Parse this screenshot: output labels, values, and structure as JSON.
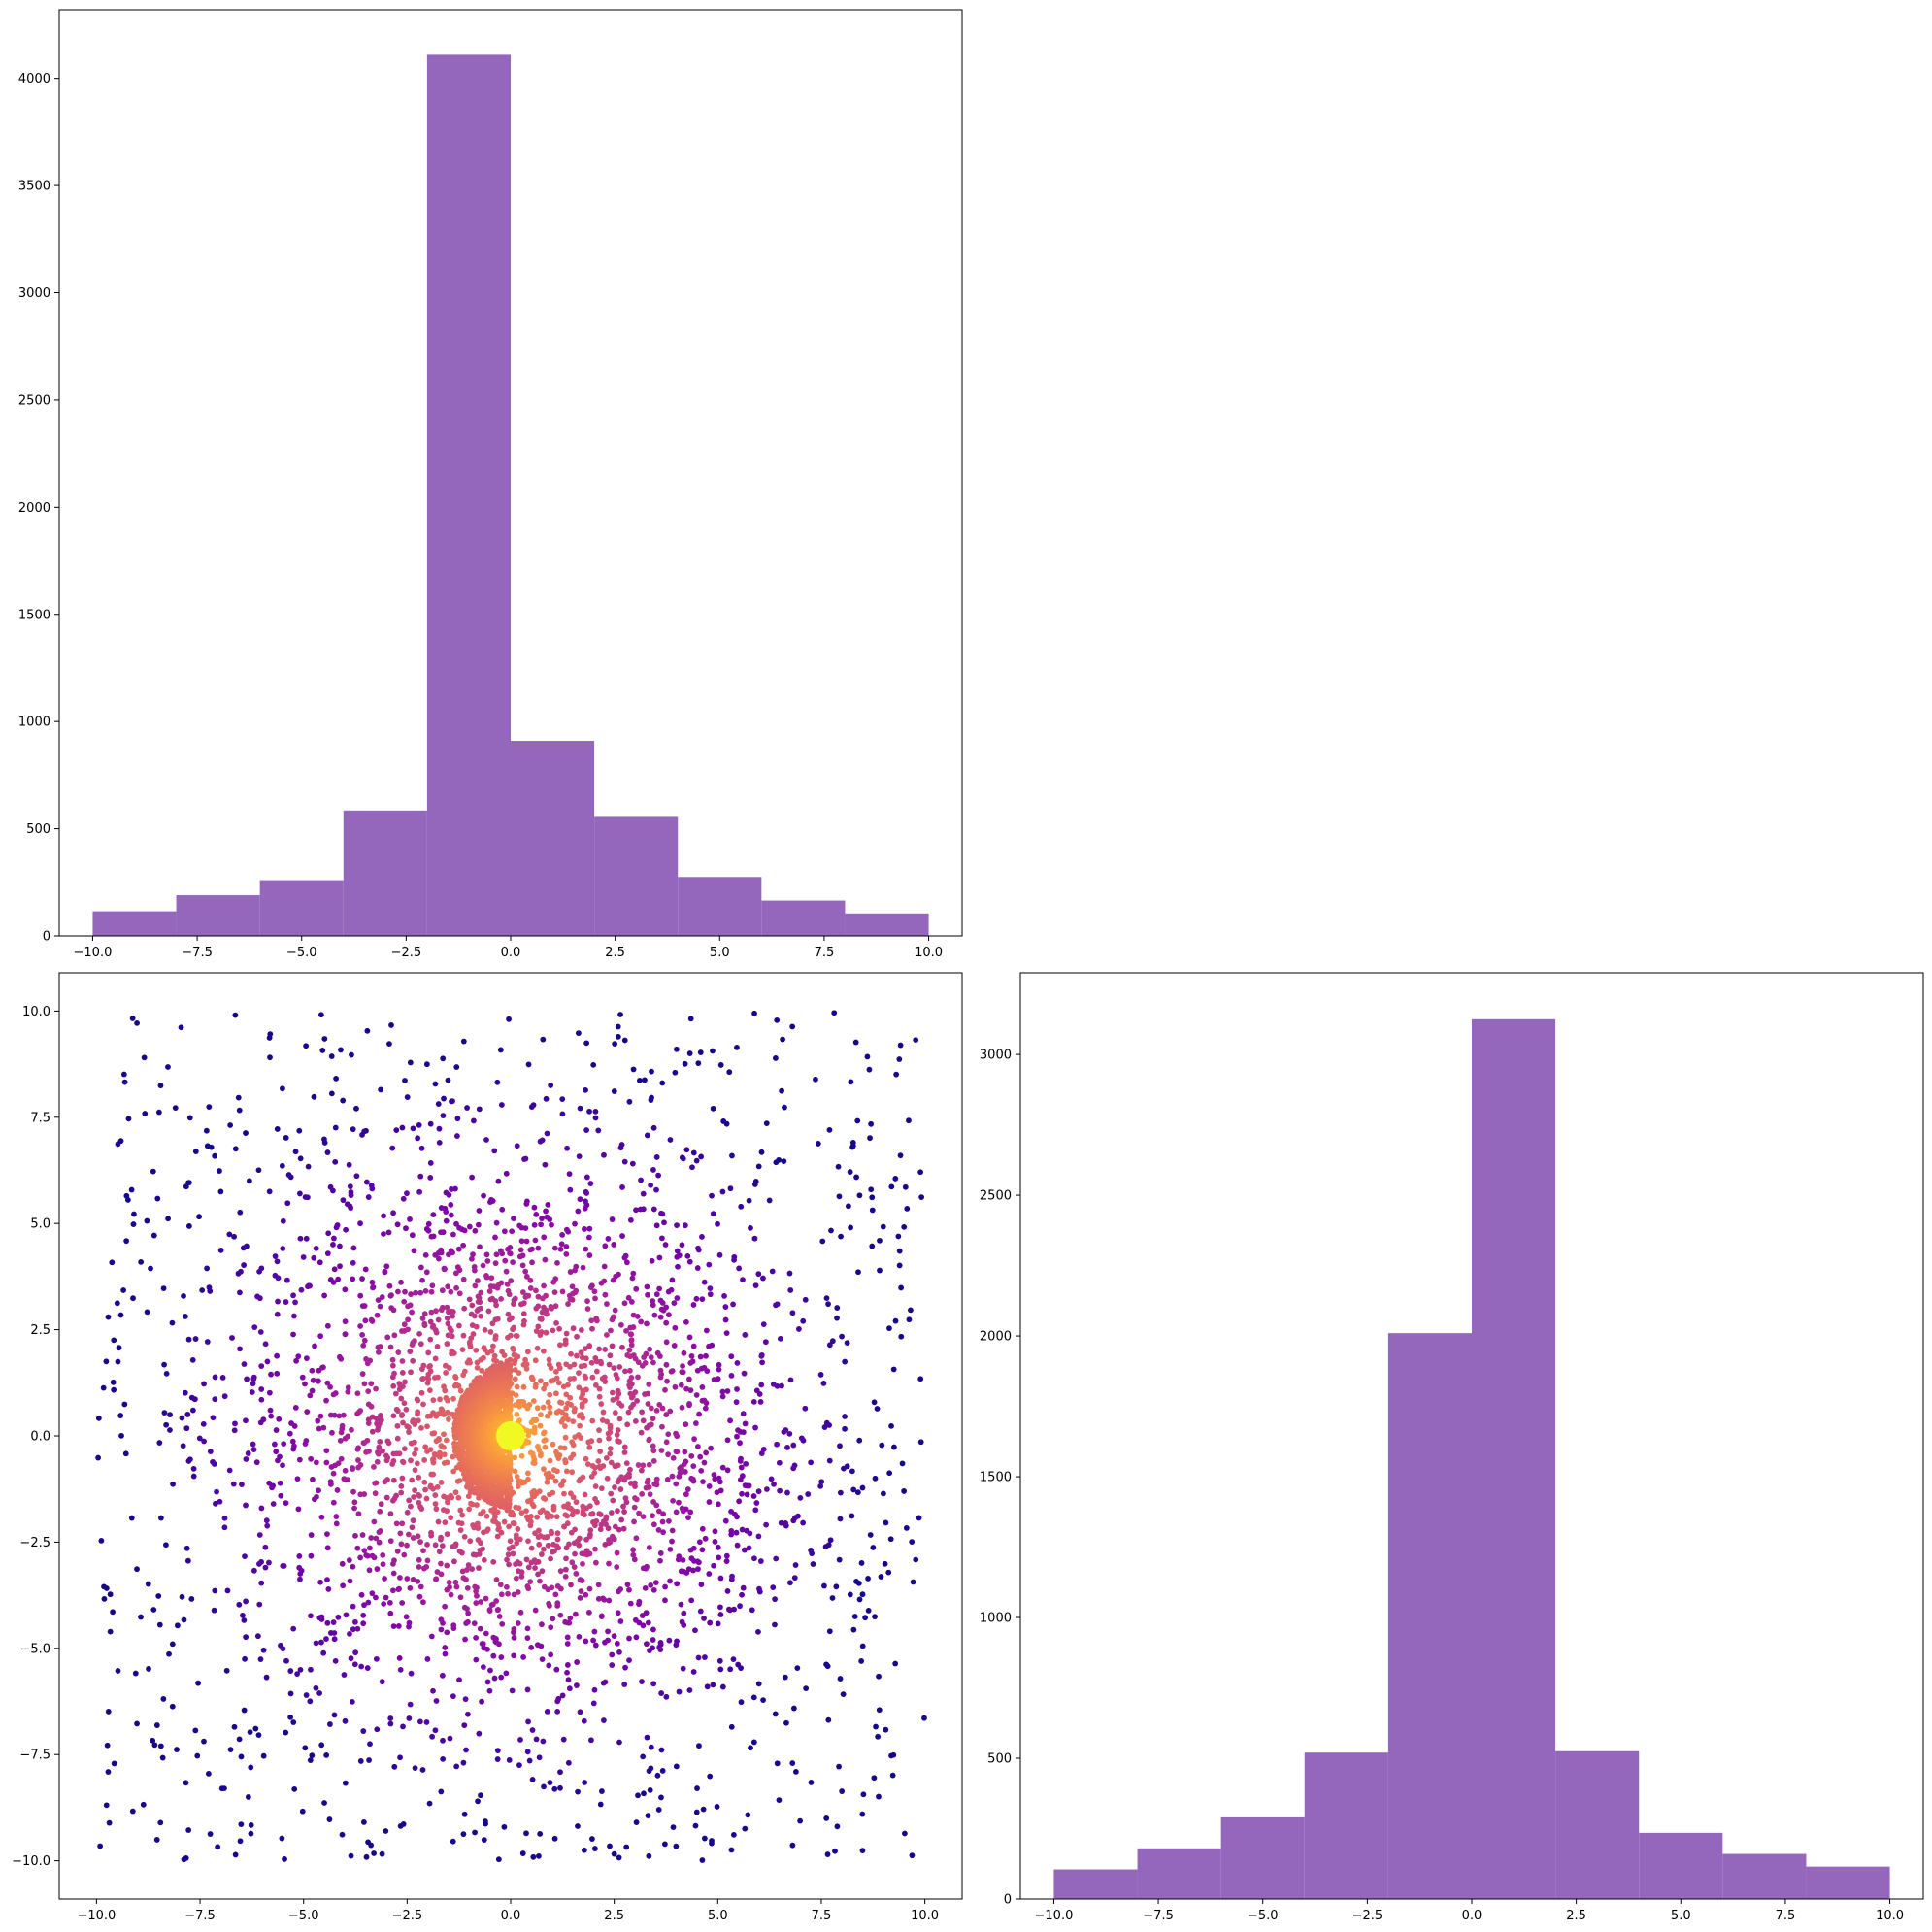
{
  "chart_data": [
    {
      "type": "bar",
      "panel": "top-left",
      "bin_edges": [
        -10,
        -8,
        -6,
        -4,
        -2,
        0,
        2,
        4,
        6,
        8,
        10
      ],
      "values": [
        115,
        190,
        260,
        585,
        4110,
        910,
        555,
        275,
        165,
        105
      ],
      "xlim": [
        -10.8,
        10.8
      ],
      "ylim": [
        0,
        4320
      ],
      "xticks": [
        -10,
        -7.5,
        -5,
        -2.5,
        0,
        2.5,
        5,
        7.5,
        10
      ],
      "xtick_labels": [
        "−10.0",
        "−7.5",
        "−5.0",
        "−2.5",
        "0.0",
        "2.5",
        "5.0",
        "7.5",
        "10.0"
      ],
      "yticks": [
        0,
        500,
        1000,
        1500,
        2000,
        2500,
        3000,
        3500,
        4000
      ],
      "ytick_labels": [
        "0",
        "500",
        "1000",
        "1500",
        "2000",
        "2500",
        "3000",
        "3500",
        "4000"
      ],
      "color": "#9467bd",
      "grid": false
    },
    {
      "type": "scatter",
      "panel": "bottom-left",
      "xlim": [
        -10.9,
        10.9
      ],
      "ylim": [
        -10.9,
        10.9
      ],
      "xticks": [
        -10,
        -7.5,
        -5,
        -2.5,
        0,
        2.5,
        5,
        7.5,
        10
      ],
      "xtick_labels": [
        "−10.0",
        "−7.5",
        "−5.0",
        "−2.5",
        "0.0",
        "2.5",
        "5.0",
        "7.5",
        "10.0"
      ],
      "yticks": [
        -10,
        -7.5,
        -5,
        -2.5,
        0,
        2.5,
        5,
        7.5,
        10
      ],
      "ytick_labels": [
        "−10.0",
        "−7.5",
        "−5.0",
        "−2.5",
        "0.0",
        "2.5",
        "5.0",
        "7.5",
        "10.0"
      ],
      "colormap": "plasma",
      "color_encoding": "point density",
      "core_center": [
        0,
        0
      ],
      "core_color": "#f0f921",
      "outer_color": "#3a049a",
      "grid": false
    },
    {
      "type": "bar",
      "panel": "bottom-right",
      "bin_edges": [
        -10,
        -8,
        -6,
        -4,
        -2,
        0,
        2,
        4,
        6,
        8,
        10
      ],
      "values": [
        105,
        180,
        290,
        520,
        2010,
        3125,
        525,
        235,
        160,
        115
      ],
      "xlim": [
        -10.8,
        10.8
      ],
      "ylim": [
        0,
        3290
      ],
      "xticks": [
        -10,
        -7.5,
        -5,
        -2.5,
        0,
        2.5,
        5,
        7.5,
        10
      ],
      "xtick_labels": [
        "−10.0",
        "−7.5",
        "−5.0",
        "−2.5",
        "0.0",
        "2.5",
        "5.0",
        "7.5",
        "10.0"
      ],
      "yticks": [
        0,
        500,
        1000,
        1500,
        2000,
        2500,
        3000
      ],
      "ytick_labels": [
        "0",
        "500",
        "1000",
        "1500",
        "2000",
        "2500",
        "3000"
      ],
      "color": "#9467bd",
      "grid": false
    }
  ]
}
